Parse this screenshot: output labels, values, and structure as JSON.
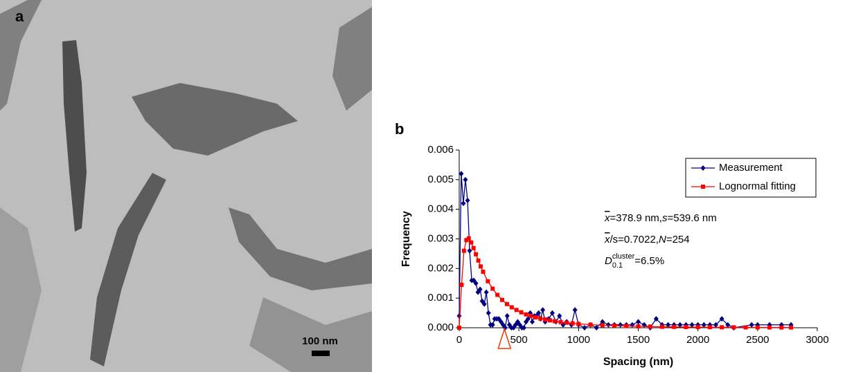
{
  "image_panel": {
    "label": "a",
    "scale_bar": "100 nm"
  },
  "chart_data": {
    "type": "line",
    "panel_label": "b",
    "x_label": "Spacing (nm)",
    "y_label": "Frequency",
    "xlim": [
      0,
      3000
    ],
    "xticks": [
      0,
      500,
      1000,
      1500,
      2000,
      2500,
      3000
    ],
    "ylim": [
      0,
      0.006
    ],
    "yticks": [
      {
        "value": 0,
        "label": "0.000"
      },
      {
        "value": 0.001,
        "label": "0.001"
      },
      {
        "value": 0.002,
        "label": "0.002"
      },
      {
        "value": 0.003,
        "label": "0.003"
      },
      {
        "value": 0.004,
        "label": "0.004"
      },
      {
        "value": 0.005,
        "label": "0.005"
      },
      {
        "value": 0.006,
        "label": "0.006"
      }
    ],
    "legend": "top-right",
    "mean_marker": 378.9,
    "annotations": [
      [
        {
          "text": "x",
          "style": "overline-italic"
        },
        {
          "text": "=378.9 nm, "
        },
        {
          "text": "s",
          "style": "italic"
        },
        {
          "text": "=539.6 nm"
        }
      ],
      [
        {
          "text": "x",
          "style": "overline-italic"
        },
        {
          "text": "/s=0.7022, "
        },
        {
          "text": "N",
          "style": "italic"
        },
        {
          "text": "=254"
        }
      ],
      [
        {
          "text": "D",
          "style": "italic"
        },
        {
          "text": "cluster",
          "style": "sup"
        },
        {
          "text": "0.1",
          "style": "sub"
        },
        {
          "text": "=6.5%"
        }
      ]
    ],
    "series": [
      {
        "name": "Measurement",
        "color": "#000080",
        "marker": "diamond",
        "x": [
          0,
          17,
          35,
          52,
          70,
          87,
          105,
          122,
          140,
          157,
          175,
          192,
          210,
          227,
          245,
          262,
          280,
          297,
          315,
          332,
          350,
          367,
          385,
          402,
          420,
          437,
          455,
          472,
          490,
          507,
          525,
          542,
          560,
          577,
          595,
          612,
          630,
          647,
          665,
          682,
          700,
          720,
          750,
          780,
          810,
          840,
          870,
          900,
          940,
          970,
          1000,
          1050,
          1100,
          1150,
          1200,
          1250,
          1300,
          1350,
          1400,
          1450,
          1500,
          1550,
          1600,
          1650,
          1700,
          1750,
          1800,
          1850,
          1900,
          1950,
          2000,
          2050,
          2100,
          2150,
          2200,
          2250,
          2300,
          2450,
          2500,
          2600,
          2700,
          2780
        ],
        "values": [
          0.0004,
          0.0052,
          0.0042,
          0.005,
          0.0043,
          0.0026,
          0.0016,
          0.0016,
          0.0015,
          0.0012,
          0.0013,
          0.0009,
          0.0008,
          0.0012,
          0.0005,
          0.0001,
          0.0001,
          0.0003,
          0.0003,
          0.0003,
          0.0002,
          0.0001,
          0,
          0.0004,
          0.0001,
          0,
          0,
          0.0001,
          0.0002,
          0.0001,
          0,
          0,
          0.0002,
          0.0003,
          0.0005,
          0.0002,
          0.0004,
          0.0004,
          0.0005,
          0.0003,
          0.0006,
          0.0002,
          0.0003,
          0.0005,
          0.0002,
          0.0004,
          0.0001,
          0.0002,
          0.0001,
          0.0006,
          0.0001,
          0,
          0.0001,
          0,
          0.0002,
          0.0001,
          0.0001,
          0.0001,
          0.0001,
          0.0001,
          0.0002,
          0.0001,
          0,
          0.0003,
          0.0001,
          0.0001,
          0.0001,
          0.0001,
          0.0001,
          0.0001,
          0.0001,
          0.0001,
          0.0001,
          0.0001,
          0.0003,
          0.0001,
          0,
          0.0001,
          0.0001,
          0.0001,
          0.0001,
          0.0001
        ]
      },
      {
        "name": "Lognormal fitting",
        "color": "#ff0000",
        "marker": "square",
        "x": [
          0,
          20,
          40,
          60,
          80,
          100,
          120,
          140,
          160,
          180,
          200,
          240,
          280,
          320,
          360,
          400,
          440,
          480,
          520,
          560,
          600,
          640,
          680,
          720,
          760,
          800,
          850,
          900,
          950,
          1000,
          1100,
          1200,
          1300,
          1400,
          1500,
          1600,
          1700,
          1800,
          1900,
          2000,
          2100,
          2200,
          2300,
          2400,
          2500,
          2600,
          2700,
          2780
        ],
        "values": [
          0,
          0.00145,
          0.0026,
          0.00296,
          0.00302,
          0.00288,
          0.00269,
          0.00248,
          0.00227,
          0.00207,
          0.00189,
          0.00157,
          0.00132,
          0.00111,
          0.00094,
          0.0008,
          0.00069,
          0.0006,
          0.00052,
          0.00045,
          0.0004,
          0.00035,
          0.00031,
          0.00028,
          0.00025,
          0.00022,
          0.00019,
          0.00017,
          0.00015,
          0.00013,
          0.000105,
          8.5e-05,
          7e-05,
          5.7e-05,
          4.7e-05,
          3.9e-05,
          3.3e-05,
          2.8e-05,
          2.4e-05,
          2.1e-05,
          1.8e-05,
          1.6e-05,
          1.4e-05,
          1.2e-05,
          1e-05,
          9e-06,
          8e-06,
          8e-06
        ]
      }
    ]
  }
}
